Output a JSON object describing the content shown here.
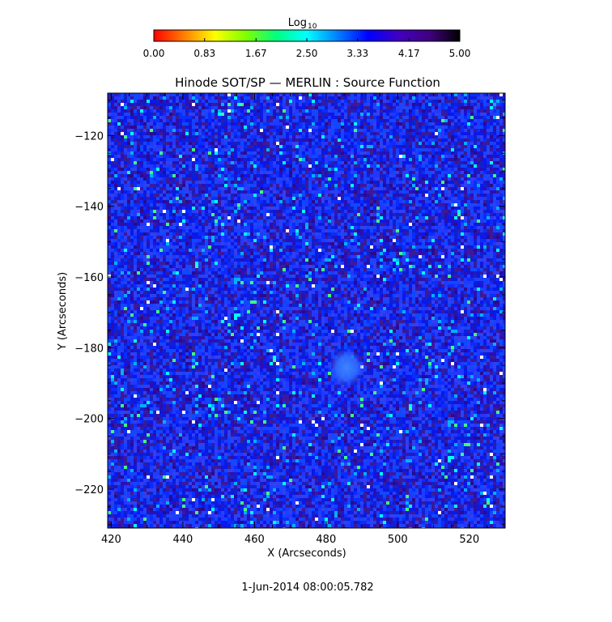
{
  "colorbar": {
    "label_base": "Log",
    "label_sub": "10",
    "ticks": [
      "0.00",
      "0.83",
      "1.67",
      "2.50",
      "3.33",
      "4.17",
      "5.00"
    ],
    "range": [
      0,
      5
    ],
    "colormap_stops": [
      "#ff0000",
      "#ff8000",
      "#ffff00",
      "#80ff00",
      "#00ff80",
      "#00ffff",
      "#0080ff",
      "#0000ff",
      "#4000c0",
      "#400080",
      "#000000"
    ]
  },
  "chart_data": {
    "type": "heatmap",
    "title": "Hinode SOT/SP — MERLIN : Source Function",
    "xlabel": "X (Arcseconds)",
    "ylabel": "Y (Arcseconds)",
    "xlim": [
      419,
      530
    ],
    "ylim": [
      -231,
      -108
    ],
    "xticks": [
      420,
      440,
      460,
      480,
      500,
      520
    ],
    "yticks": [
      -120,
      -140,
      -160,
      -180,
      -200,
      -220
    ],
    "xtick_labels": [
      "420",
      "440",
      "460",
      "480",
      "500",
      "520"
    ],
    "ytick_labels": [
      "−120",
      "−140",
      "−160",
      "−180",
      "−200",
      "−220"
    ],
    "background_value_log10": 4.3,
    "feature": {
      "x": 483,
      "y": -185,
      "value_log10": 3.9
    },
    "colors": {
      "dominant": "#1a2cff",
      "speckle_bright": "#00ffff",
      "speckle_dark": "#2a0080",
      "feature": "#2f7bff"
    }
  },
  "timestamp": "1-Jun-2014 08:00:05.782"
}
